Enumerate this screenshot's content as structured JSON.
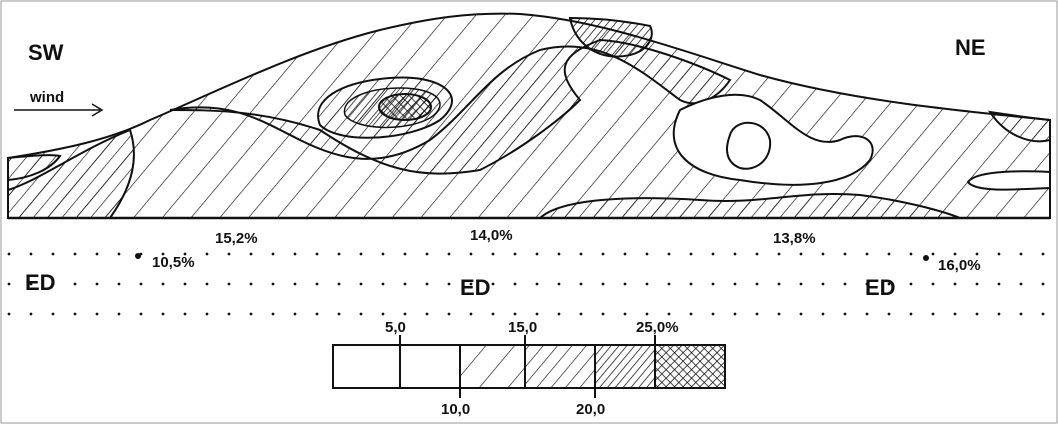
{
  "labels": {
    "left": "SW",
    "right": "NE",
    "wind": "wind"
  },
  "surface_values": [
    "15,2%",
    "14,0%",
    "13,8%"
  ],
  "points": [
    "10,5%",
    "16,0%"
  ],
  "zones": [
    "ED",
    "ED",
    "ED"
  ],
  "legend": {
    "top": [
      "5,0",
      "15,0",
      "25,0%"
    ],
    "bottom": [
      "10,0",
      "20,0"
    ]
  }
}
